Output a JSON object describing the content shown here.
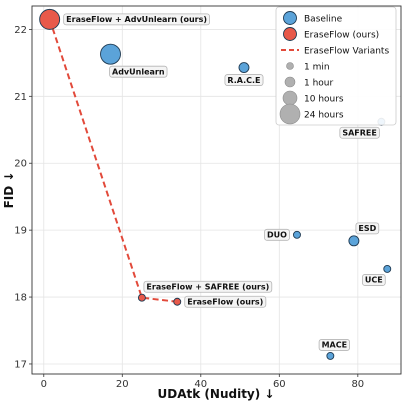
{
  "chart_data": {
    "type": "scatter",
    "xlabel": "UDAtk (Nudity) ↓",
    "ylabel": "FID ↓",
    "xlim": [
      -3,
      91
    ],
    "ylim": [
      16.85,
      22.35
    ],
    "xticks": [
      "0",
      "20",
      "40",
      "60",
      "80"
    ],
    "xtick_values": [
      0,
      20,
      40,
      60,
      80
    ],
    "yticks": [
      "17",
      "18",
      "19",
      "20",
      "21",
      "22"
    ],
    "ytick_values": [
      17,
      18,
      19,
      20,
      21,
      22
    ],
    "grid": true,
    "colors": {
      "baseline": "#5ba3d9",
      "ours": "#e8594a",
      "variants_line": "#e24a3b",
      "edge": "#1e3a52",
      "size_legend": "#b0b0b0"
    },
    "points": [
      {
        "label": "EraseFlow + AdvUnlearn (ours)",
        "x": 1.5,
        "y": 22.15,
        "group": "ours",
        "time": "24 hours",
        "label_pos": "right"
      },
      {
        "label": "AdvUnlearn",
        "x": 17,
        "y": 21.63,
        "group": "baseline",
        "time": "24 hours",
        "label_pos": "below-right"
      },
      {
        "label": "R.A.C.E",
        "x": 51,
        "y": 21.43,
        "group": "baseline",
        "time": "1 hour",
        "label_pos": "below"
      },
      {
        "label": "SAFREE",
        "x": 86,
        "y": 20.62,
        "group": "baseline",
        "time": "1 min",
        "label_pos": "below-left"
      },
      {
        "label": "DUO",
        "x": 64.5,
        "y": 18.93,
        "group": "baseline",
        "time": "1 min",
        "label_pos": "left"
      },
      {
        "label": "ESD",
        "x": 79,
        "y": 18.84,
        "group": "baseline",
        "time": "1 hour",
        "label_pos": "above-right"
      },
      {
        "label": "UCE",
        "x": 87.5,
        "y": 18.42,
        "group": "baseline",
        "time": "1 min",
        "label_pos": "below-left"
      },
      {
        "label": "MACE",
        "x": 73,
        "y": 17.12,
        "group": "baseline",
        "time": "1 min",
        "label_pos": "above"
      },
      {
        "label": "EraseFlow + SAFREE (ours)",
        "x": 25,
        "y": 17.99,
        "group": "ours",
        "time": "1 min",
        "label_pos": "above-right"
      },
      {
        "label": "EraseFlow (ours)",
        "x": 34,
        "y": 17.93,
        "group": "ours",
        "time": "1 min",
        "label_pos": "right"
      }
    ],
    "variants_line": [
      {
        "x": 1.5,
        "y": 22.15
      },
      {
        "x": 25,
        "y": 17.99
      },
      {
        "x": 34,
        "y": 17.93
      }
    ],
    "legend": {
      "position": "top-right",
      "items": [
        {
          "label": "Baseline",
          "kind": "baseline"
        },
        {
          "label": "EraseFlow (ours)",
          "kind": "ours"
        },
        {
          "label": "EraseFlow Variants",
          "kind": "line"
        },
        {
          "label": "1 min",
          "kind": "size",
          "time": "1 min"
        },
        {
          "label": "1 hour",
          "kind": "size",
          "time": "1 hour"
        },
        {
          "label": "10 hours",
          "kind": "size",
          "time": "10 hours"
        },
        {
          "label": "24 hours",
          "kind": "size",
          "time": "24 hours"
        }
      ]
    }
  }
}
